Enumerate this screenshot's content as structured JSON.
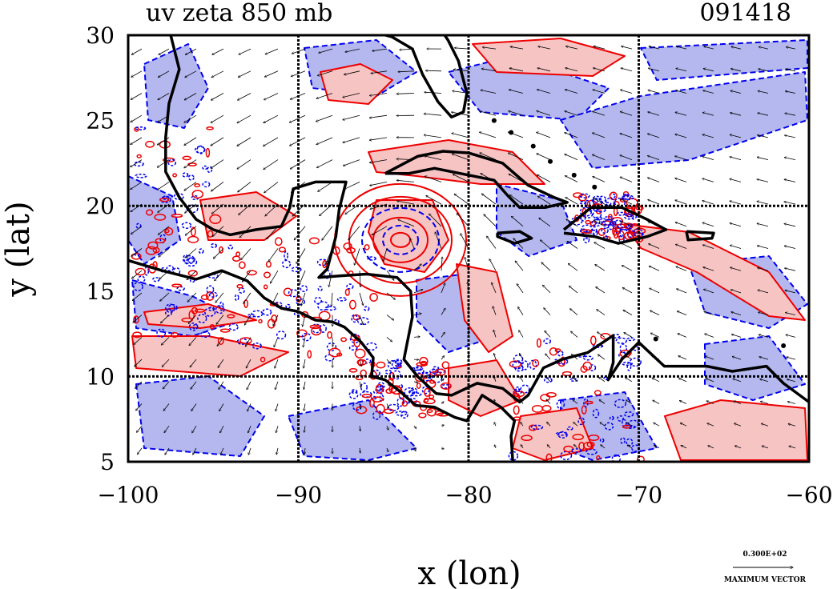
{
  "chart_data": {
    "type": "heatmap",
    "title": "uv zeta 850 mb",
    "time_label": "091418",
    "xlabel": "x (lon)",
    "ylabel": "y (lat)",
    "xlim": [
      -100,
      -60
    ],
    "ylim": [
      5,
      30
    ],
    "x_ticks": [
      -100,
      -90,
      -80,
      -70,
      -60
    ],
    "y_ticks": [
      5,
      10,
      15,
      20,
      25,
      30
    ],
    "x_tick_labels": [
      "−100",
      "−90",
      "−80",
      "−70",
      "−60"
    ],
    "y_tick_labels": [
      "5",
      "10",
      "15",
      "20",
      "25",
      "30"
    ],
    "grid": true,
    "grid_lines_x": [
      -90,
      -80,
      -70
    ],
    "grid_lines_y": [
      10,
      20
    ],
    "fields": [
      {
        "name": "positive vorticity",
        "color": "#ee0000",
        "fill": "#f7c4c4",
        "linestyle": "solid"
      },
      {
        "name": "negative vorticity",
        "color": "#0000ee",
        "fill": "#b4b8ee",
        "linestyle": "dashed"
      }
    ],
    "vortex_center": {
      "lon": -84,
      "lat": 18
    },
    "reference_vector": {
      "value_label": "0.300E+02",
      "caption": "MAXIMUM VECTOR"
    }
  }
}
